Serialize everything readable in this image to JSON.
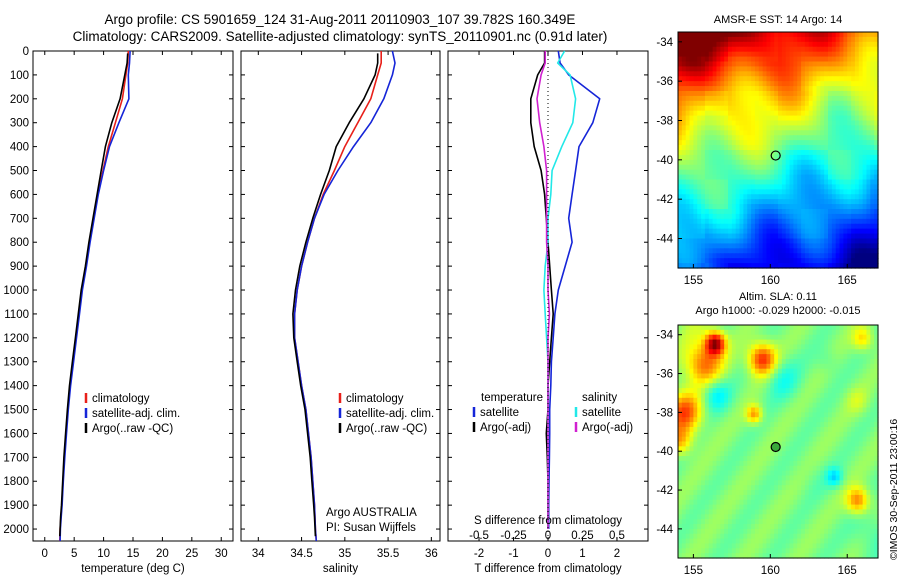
{
  "header": {
    "line1": "Argo profile: CS 5901659_124 31-Aug-2011 20110903_107 39.782S 160.349E",
    "line2": "Climatology: CARS2009. Satellite-adjusted climatology: synTS_20110901.nc (0.91d later)"
  },
  "colors": {
    "climatology": "#e8201a",
    "satellite": "#1525d8",
    "argo": "#000000",
    "sal_satellite": "#22e8e8",
    "sal_argo": "#d020d0"
  },
  "panel_texts": {
    "argo_australia": "Argo AUSTRALIA",
    "pi": "PI: Susan Wijffels",
    "diff_temperature_header": "temperature",
    "diff_salinity_header": "salinity",
    "diff_s_label": "S difference from climatology",
    "diff_s_ticks": [
      "-0.5",
      "-0.25",
      "0",
      "0.25",
      "0.5"
    ]
  },
  "maps": {
    "sst_title": "AMSR-E SST: 14 Argo: 14",
    "sla_title1": "Altim. SLA: 0.11",
    "sla_title2": "Argo h1000: -0.029 h2000: -0.015",
    "lon_ticks": [
      155,
      160,
      165
    ],
    "lat_ticks": [
      -34,
      -36,
      -38,
      -40,
      -42,
      -44
    ],
    "float_position": {
      "lon": 160.349,
      "lat": -39.782
    }
  },
  "credit": "©IMOS 30-Sep-2011 23:00:16",
  "chart_data": [
    {
      "type": "line",
      "xlabel": "temperature (deg C)",
      "ylabel": "",
      "xlim": [
        -2,
        32
      ],
      "ylim": [
        2050,
        0
      ],
      "xticks": [
        0,
        5,
        10,
        15,
        20,
        25,
        30
      ],
      "yticks": [
        0,
        100,
        200,
        300,
        400,
        500,
        600,
        700,
        800,
        900,
        1000,
        1100,
        1200,
        1300,
        1400,
        1500,
        1600,
        1700,
        1800,
        1900,
        2000
      ],
      "legend": [
        "climatology",
        "satellite-adj. clim.",
        "Argo(..raw -QC)"
      ],
      "series": [
        {
          "name": "climatology",
          "color_key": "climatology",
          "x": [
            14.2,
            14.1,
            13.8,
            13.2,
            12.0,
            10.8,
            9.9,
            9.0,
            8.3,
            7.6,
            7.0,
            6.3,
            5.8,
            5.3,
            4.8,
            4.3,
            3.9,
            3.6,
            3.3,
            3.1,
            2.9,
            2.75,
            2.6,
            2.55
          ],
          "y": [
            0,
            50,
            100,
            200,
            300,
            400,
            500,
            600,
            700,
            800,
            900,
            1000,
            1100,
            1200,
            1300,
            1400,
            1500,
            1600,
            1700,
            1800,
            1900,
            1950,
            2000,
            2050
          ]
        },
        {
          "name": "satellite-adj. clim.",
          "color_key": "satellite",
          "x": [
            14.5,
            14.4,
            14.2,
            14.3,
            12.6,
            11.0,
            10.0,
            9.1,
            8.4,
            7.7,
            7.1,
            6.4,
            5.9,
            5.4,
            4.9,
            4.4,
            4.0,
            3.7,
            3.4,
            3.15,
            2.95,
            2.8,
            2.65,
            2.6
          ],
          "y": [
            0,
            50,
            100,
            200,
            300,
            400,
            500,
            600,
            700,
            800,
            900,
            1000,
            1100,
            1200,
            1300,
            1400,
            1500,
            1600,
            1700,
            1800,
            1900,
            1950,
            2000,
            2050
          ]
        },
        {
          "name": "Argo(..raw -QC)",
          "color_key": "argo",
          "x": [
            14.1,
            14.0,
            13.6,
            12.8,
            11.4,
            10.3,
            9.6,
            8.9,
            8.2,
            7.5,
            6.9,
            6.2,
            5.7,
            5.2,
            4.7,
            4.2,
            3.85,
            3.55,
            3.25,
            3.05,
            2.85,
            2.7,
            2.55
          ],
          "y": [
            10,
            50,
            100,
            200,
            300,
            400,
            500,
            600,
            700,
            800,
            900,
            1000,
            1100,
            1200,
            1300,
            1400,
            1500,
            1600,
            1700,
            1800,
            1900,
            1950,
            2030
          ]
        }
      ]
    },
    {
      "type": "line",
      "xlabel": "salinity",
      "ylabel": "",
      "xlim": [
        33.8,
        36.1
      ],
      "ylim": [
        2050,
        0
      ],
      "xticks": [
        34,
        34.5,
        35,
        35.5,
        36
      ],
      "xticklabels": [
        "34",
        "34.5",
        "35",
        "35.5",
        "36"
      ],
      "legend": [
        "climatology",
        "satellite-adj. clim.",
        "Argo(..raw -QC)"
      ],
      "series": [
        {
          "name": "climatology",
          "color_key": "climatology",
          "x": [
            35.42,
            35.42,
            35.38,
            35.3,
            35.15,
            35.0,
            34.88,
            34.75,
            34.65,
            34.57,
            34.5,
            34.45,
            34.42,
            34.42,
            34.46,
            34.5,
            34.55,
            34.58,
            34.61,
            34.63,
            34.65,
            34.66,
            34.67
          ],
          "y": [
            0,
            50,
            100,
            200,
            300,
            400,
            500,
            600,
            700,
            800,
            900,
            1000,
            1100,
            1200,
            1300,
            1400,
            1500,
            1600,
            1700,
            1800,
            1900,
            2000,
            2050
          ]
        },
        {
          "name": "satellite-adj. clim.",
          "color_key": "satellite",
          "x": [
            35.55,
            35.58,
            35.55,
            35.45,
            35.3,
            35.1,
            34.92,
            34.76,
            34.65,
            34.57,
            34.5,
            34.45,
            34.42,
            34.42,
            34.46,
            34.5,
            34.55,
            34.58,
            34.61,
            34.63,
            34.65,
            34.66,
            34.67
          ],
          "y": [
            0,
            50,
            100,
            200,
            300,
            400,
            500,
            600,
            700,
            800,
            900,
            1000,
            1100,
            1200,
            1300,
            1400,
            1500,
            1600,
            1700,
            1800,
            1900,
            2000,
            2050
          ]
        },
        {
          "name": "Argo(..raw -QC)",
          "color_key": "argo",
          "x": [
            35.38,
            35.38,
            35.35,
            35.22,
            35.05,
            34.9,
            34.82,
            34.72,
            34.63,
            34.55,
            34.48,
            34.43,
            34.4,
            34.41,
            34.45,
            34.49,
            34.54,
            34.57,
            34.6,
            34.62,
            34.64,
            34.65,
            34.66
          ],
          "y": [
            10,
            50,
            100,
            200,
            300,
            400,
            500,
            600,
            700,
            800,
            900,
            1000,
            1100,
            1200,
            1300,
            1400,
            1500,
            1600,
            1700,
            1800,
            1900,
            1950,
            2030
          ]
        }
      ]
    },
    {
      "type": "line",
      "xlabel": "T difference from climatology",
      "ylabel": "",
      "xlim": [
        -2.9,
        2.9
      ],
      "ylim": [
        2050,
        0
      ],
      "xticks": [
        -2,
        -1,
        0,
        1,
        2
      ],
      "secondary_xlabel": "S difference from climatology",
      "secondary_xlim": [
        -0.725,
        0.725
      ],
      "secondary_xticks": [
        -0.5,
        -0.25,
        0,
        0.25,
        0.5
      ],
      "legend": [
        "temperature",
        "satellite",
        "Argo(-adj)",
        "salinity",
        "satellite",
        "Argo(-adj)"
      ],
      "series": [
        {
          "name": "satellite",
          "color_key": "satellite",
          "quantity": "temperature",
          "x": [
            0.3,
            0.35,
            0.6,
            1.5,
            1.3,
            0.9,
            0.8,
            0.7,
            0.6,
            0.7,
            0.5,
            0.3,
            0.2,
            0.15,
            0.1,
            0.08,
            0.05,
            0.05,
            0.04,
            0.03,
            0.02,
            0.02
          ],
          "y": [
            0,
            50,
            100,
            200,
            300,
            400,
            500,
            600,
            700,
            800,
            900,
            1000,
            1100,
            1200,
            1300,
            1400,
            1500,
            1600,
            1700,
            1800,
            1900,
            2000
          ]
        },
        {
          "name": "Argo(-adj)",
          "color_key": "argo",
          "quantity": "temperature",
          "x": [
            -0.1,
            -0.1,
            -0.3,
            -0.5,
            -0.5,
            -0.4,
            -0.2,
            -0.1,
            -0.05,
            0.0,
            0.05,
            0.1,
            0.15,
            0.1,
            0.05,
            0.0,
            0.0,
            -0.05,
            -0.02,
            0.0,
            0.0,
            0.0
          ],
          "y": [
            0,
            50,
            100,
            200,
            300,
            400,
            500,
            600,
            700,
            800,
            900,
            1000,
            1100,
            1200,
            1300,
            1400,
            1500,
            1600,
            1700,
            1800,
            1900,
            2000
          ]
        },
        {
          "name": "satellite",
          "color_key": "sal_satellite",
          "quantity": "salinity",
          "x": [
            0.12,
            0.07,
            0.16,
            0.2,
            0.18,
            0.1,
            0.03,
            0.02,
            0.0,
            0.0,
            -0.02,
            -0.03,
            -0.02,
            -0.01,
            0.0,
            0.0,
            0.0,
            0.0,
            0.0,
            0.0,
            0.0,
            0.0
          ],
          "y": [
            0,
            50,
            100,
            200,
            300,
            400,
            500,
            600,
            700,
            800,
            900,
            1000,
            1100,
            1200,
            1300,
            1400,
            1500,
            1600,
            1700,
            1800,
            1900,
            2000
          ]
        },
        {
          "name": "Argo(-adj)",
          "color_key": "sal_argo",
          "quantity": "salinity",
          "x": [
            -0.02,
            -0.02,
            -0.05,
            -0.08,
            -0.06,
            -0.03,
            -0.01,
            -0.01,
            -0.01,
            -0.01,
            0.0,
            0.0,
            0.01,
            0.0,
            0.0,
            0.0,
            0.0,
            0.0,
            0.0,
            0.0,
            0.0,
            0.0
          ],
          "y": [
            0,
            50,
            100,
            200,
            300,
            400,
            500,
            600,
            700,
            800,
            900,
            1000,
            1100,
            1200,
            1300,
            1400,
            1500,
            1600,
            1700,
            1800,
            1900,
            2000
          ]
        }
      ]
    },
    {
      "type": "heatmap",
      "title": "AMSR-E SST: 14 Argo: 14",
      "xlim": [
        154,
        167
      ],
      "ylim": [
        -45.5,
        -33.5
      ],
      "xticks": [
        155,
        160,
        165
      ],
      "yticks": [
        -34,
        -36,
        -38,
        -40,
        -42,
        -44
      ]
    },
    {
      "type": "heatmap",
      "title": "Altim. SLA: 0.11",
      "subtitle": "Argo h1000: -0.029 h2000: -0.015",
      "xlim": [
        154,
        167
      ],
      "ylim": [
        -45.5,
        -33.5
      ],
      "xticks": [
        155,
        160,
        165
      ],
      "yticks": [
        -34,
        -36,
        -38,
        -40,
        -42,
        -44
      ]
    }
  ]
}
